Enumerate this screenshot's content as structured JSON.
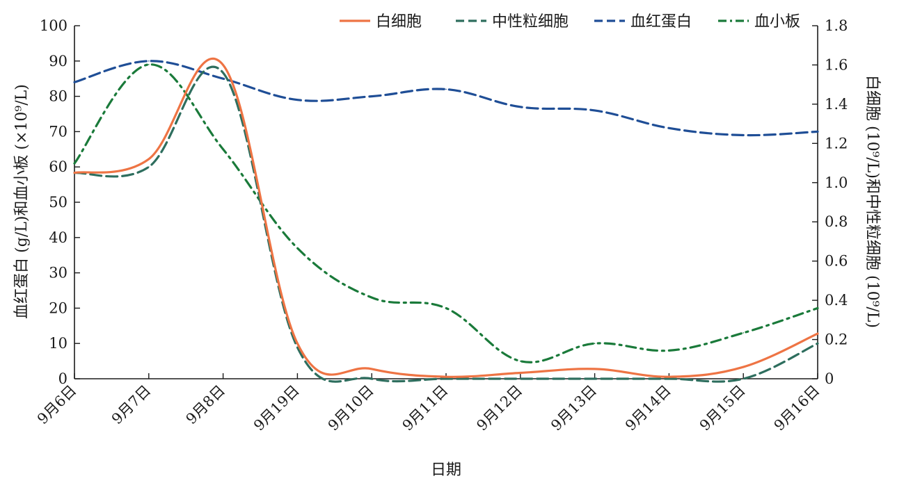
{
  "chart_data": {
    "type": "line",
    "xlabel": "日期",
    "ylabel_left": "血红蛋白 (g/L)和血小板 (×10⁹/L)",
    "ylabel_right": "白细胞 (10⁹/L)和中性粒细胞 (10⁹/L)",
    "categories": [
      "9月6日",
      "9月7日",
      "9月8日",
      "9月19日",
      "9月10日",
      "9月11日",
      "9月12日",
      "9月13日",
      "9月14日",
      "9月15日",
      "9月16日"
    ],
    "ylim_left": [
      0,
      100
    ],
    "ylim_right": [
      0,
      1.8
    ],
    "yticks_left": [
      "0",
      "10",
      "20",
      "30",
      "40",
      "50",
      "60",
      "70",
      "80",
      "90",
      "100"
    ],
    "yticks_right": [
      "0",
      "0.2",
      "0.4",
      "0.6",
      "0.8",
      "1.0",
      "1.2",
      "1.4",
      "1.6",
      "1.8"
    ],
    "legend_position": "top-right",
    "series": [
      {
        "name": "白细胞",
        "axis": "right",
        "color": "#ee7444",
        "style": "solid",
        "values": [
          1.05,
          1.12,
          1.6,
          0.18,
          0.05,
          0.01,
          0.03,
          0.05,
          0.01,
          0.06,
          0.23
        ]
      },
      {
        "name": "中性粒细胞",
        "axis": "right",
        "color": "#2e6e5e",
        "style": "dashed",
        "values": [
          1.05,
          1.08,
          1.56,
          0.16,
          0.0,
          0.0,
          0.0,
          0.0,
          0.0,
          0.0,
          0.18
        ]
      },
      {
        "name": "血红蛋白",
        "axis": "left",
        "color": "#1f4e96",
        "style": "dashed",
        "values": [
          84,
          90,
          85,
          79,
          80,
          82,
          77,
          76,
          71,
          69,
          70
        ]
      },
      {
        "name": "血小板",
        "axis": "left",
        "color": "#1a7a3a",
        "style": "dashdot",
        "values": [
          61,
          89,
          65,
          37,
          23,
          20,
          5,
          10,
          8,
          13,
          20
        ]
      }
    ]
  }
}
